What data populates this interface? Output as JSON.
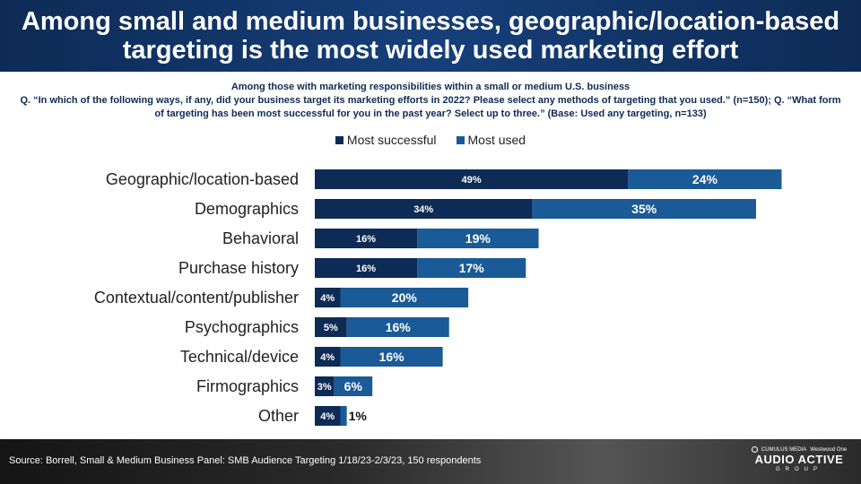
{
  "header": {
    "title": "Among small and medium businesses, geographic/location-based targeting is the most widely used marketing effort"
  },
  "subhead": {
    "line1": "Among those with marketing responsibilities within a small or medium U.S. business",
    "question": "Q. “In which of the following ways, if any, did your business target its marketing efforts in 2022? Please select any methods of targeting that you used.” (n=150); Q. “What form of targeting has been most successful for you in the past year? Select up to three.” (Base: Used any targeting, n=133)"
  },
  "colors": {
    "most_successful": "#0d2b55",
    "most_used": "#1a5a96"
  },
  "chart_data": {
    "type": "bar",
    "orientation": "horizontal",
    "stacked": true,
    "categories": [
      "Geographic/location-based",
      "Demographics",
      "Behavioral",
      "Purchase history",
      "Contextual/content/publisher",
      "Psychographics",
      "Technical/device",
      "Firmographics",
      "Other"
    ],
    "series": [
      {
        "name": "Most successful",
        "values": [
          49,
          34,
          16,
          16,
          4,
          5,
          4,
          3,
          4
        ],
        "labels": [
          "49%",
          "34%",
          "16%",
          "16%",
          "4%",
          "5%",
          "4%",
          "3%",
          "4%"
        ]
      },
      {
        "name": "Most used",
        "values": [
          24,
          35,
          19,
          17,
          20,
          16,
          16,
          6,
          1
        ],
        "labels": [
          "24%",
          "35%",
          "19%",
          "17%",
          "20%",
          "16%",
          "16%",
          "6%",
          "1%"
        ]
      }
    ],
    "legend": "top-center"
  },
  "footer": {
    "source": "Source: Borrell, Small & Medium Business Panel: SMB Audience Targeting 1/18/23-2/3/23, 150 respondents",
    "logo_top_left": "CUMULUS MEDIA",
    "logo_top_right": "Westwood One",
    "logo_main": "AUDIO ACTIVE",
    "logo_sub": "GROUP"
  }
}
